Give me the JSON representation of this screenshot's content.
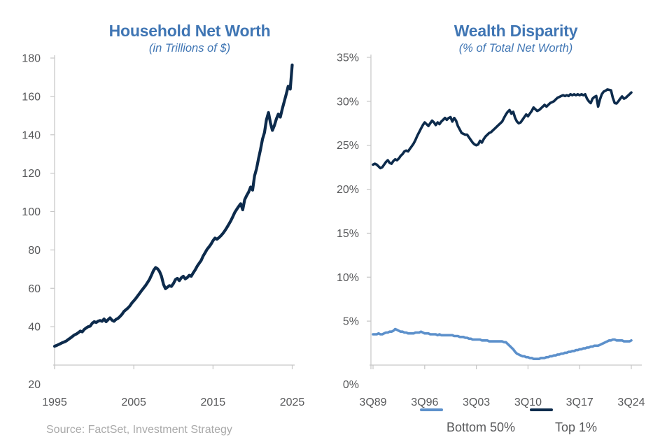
{
  "page": {
    "background": "#FFFFFF"
  },
  "source_note": "Source: FactSet, Investment Strategy",
  "colors": {
    "title_blue": "#4076B4",
    "navy": "#0D2B4C",
    "light_blue": "#5C90CB",
    "axis_gray": "#C6C6C6",
    "label_gray": "#58595B",
    "source_gray": "#A9A9A9"
  },
  "chart_data": [
    {
      "type": "line",
      "title": "Household Net Worth",
      "subtitle": "(in Trillions of $)",
      "xlabel": "",
      "ylabel": "",
      "grid": false,
      "legend_position": "none",
      "ylim": [
        20,
        180
      ],
      "ytick_labels": [
        "180",
        "160",
        "140",
        "120",
        "100",
        "80",
        "60",
        "40",
        "20"
      ],
      "xtick_labels": [
        "1995",
        "2005",
        "2015",
        "2025"
      ],
      "xtick_years": [
        1995,
        2005,
        2015,
        2025
      ],
      "x_start": 1995.0,
      "x_step": 0.25,
      "x_end": 2025.0,
      "x_unit": "quarterly, 1Q95 to 1Q25",
      "series": [
        {
          "name": "Household Net Worth",
          "color": "#0D2B4C",
          "values": [
            29.8,
            30.2,
            30.7,
            31.2,
            31.7,
            32.1,
            32.6,
            33.4,
            34.1,
            34.9,
            35.7,
            36.2,
            36.9,
            37.7,
            37.3,
            38.6,
            39.4,
            40.0,
            40.3,
            41.8,
            42.6,
            42.2,
            42.9,
            43.2,
            42.8,
            44.0,
            42.6,
            43.6,
            44.6,
            43.4,
            42.8,
            43.8,
            44.3,
            45.3,
            46.4,
            47.9,
            48.8,
            49.7,
            50.8,
            52.3,
            53.5,
            54.7,
            56.1,
            57.5,
            58.9,
            60.2,
            61.5,
            63.1,
            64.8,
            67.0,
            69.4,
            70.8,
            70.2,
            68.8,
            66.2,
            62.1,
            59.8,
            60.6,
            61.4,
            61.0,
            62.5,
            64.5,
            65.2,
            64.0,
            65.5,
            66.3,
            64.9,
            65.6,
            66.8,
            66.3,
            68.0,
            69.6,
            71.5,
            73.0,
            74.5,
            76.8,
            78.5,
            80.3,
            81.6,
            83.0,
            84.8,
            86.2,
            85.6,
            86.4,
            87.4,
            88.6,
            90.0,
            91.6,
            93.4,
            95.2,
            97.3,
            99.6,
            101.2,
            102.7,
            104.1,
            100.9,
            106.2,
            108.3,
            110.2,
            112.8,
            111.2,
            118.6,
            122.4,
            127.6,
            132.3,
            137.8,
            141.2,
            147.8,
            151.6,
            146.2,
            142.3,
            144.8,
            148.3,
            150.8,
            149.2,
            153.6,
            157.4,
            161.2,
            165.3,
            163.8,
            176.4
          ]
        }
      ]
    },
    {
      "type": "line",
      "title": "Wealth Disparity",
      "subtitle": "(% of Total Net Worth)",
      "xlabel": "",
      "ylabel": "",
      "grid": false,
      "legend_position": "bottom",
      "ylim": [
        0,
        35
      ],
      "ytick_labels": [
        "35%",
        "30%",
        "25%",
        "20%",
        "15%",
        "10%",
        "5%",
        "0%"
      ],
      "xtick_labels": [
        "3Q89",
        "3Q96",
        "3Q03",
        "3Q10",
        "3Q17",
        "3Q24"
      ],
      "xtick_years": [
        1989.75,
        1996.75,
        2003.75,
        2010.75,
        2017.75,
        2024.75
      ],
      "x_start": 1989.75,
      "x_step": 0.25,
      "x_end": 2024.75,
      "x_unit": "quarterly, 3Q89 to 3Q24",
      "series": [
        {
          "name": "Bottom 50%",
          "color": "#5C90CB",
          "values": [
            3.5,
            3.5,
            3.5,
            3.6,
            3.5,
            3.5,
            3.6,
            3.7,
            3.7,
            3.8,
            3.8,
            3.9,
            4.1,
            4.0,
            3.9,
            3.8,
            3.8,
            3.7,
            3.7,
            3.6,
            3.6,
            3.6,
            3.6,
            3.7,
            3.7,
            3.7,
            3.8,
            3.7,
            3.6,
            3.6,
            3.6,
            3.5,
            3.5,
            3.5,
            3.5,
            3.4,
            3.5,
            3.4,
            3.4,
            3.4,
            3.4,
            3.4,
            3.4,
            3.4,
            3.3,
            3.3,
            3.3,
            3.2,
            3.2,
            3.2,
            3.1,
            3.1,
            3.0,
            3.0,
            2.9,
            2.9,
            2.9,
            2.9,
            2.9,
            2.8,
            2.8,
            2.8,
            2.8,
            2.7,
            2.7,
            2.7,
            2.7,
            2.7,
            2.7,
            2.7,
            2.7,
            2.6,
            2.6,
            2.4,
            2.2,
            2.0,
            1.8,
            1.5,
            1.3,
            1.2,
            1.1,
            1.0,
            1.0,
            0.9,
            0.9,
            0.8,
            0.8,
            0.7,
            0.7,
            0.7,
            0.7,
            0.8,
            0.8,
            0.8,
            0.9,
            0.9,
            1.0,
            1.0,
            1.1,
            1.1,
            1.2,
            1.2,
            1.3,
            1.3,
            1.4,
            1.4,
            1.5,
            1.5,
            1.6,
            1.6,
            1.7,
            1.7,
            1.8,
            1.8,
            1.9,
            1.9,
            2.0,
            2.0,
            2.1,
            2.1,
            2.2,
            2.2,
            2.2,
            2.3,
            2.4,
            2.5,
            2.6,
            2.7,
            2.8,
            2.8,
            2.9,
            2.9,
            2.8,
            2.8,
            2.8,
            2.8,
            2.7,
            2.7,
            2.7,
            2.7,
            2.8
          ]
        },
        {
          "name": "Top 1%",
          "color": "#0D2B4C",
          "values": [
            22.8,
            22.9,
            22.8,
            22.6,
            22.4,
            22.5,
            22.8,
            23.1,
            23.3,
            23.0,
            22.9,
            23.2,
            23.4,
            23.3,
            23.5,
            23.8,
            24.0,
            24.3,
            24.4,
            24.3,
            24.6,
            24.9,
            25.2,
            25.6,
            26.1,
            26.5,
            26.9,
            27.3,
            27.6,
            27.4,
            27.2,
            27.5,
            27.8,
            27.6,
            27.3,
            27.6,
            27.4,
            27.7,
            27.9,
            28.1,
            27.9,
            28.1,
            28.2,
            27.7,
            28.1,
            27.8,
            27.2,
            26.8,
            26.4,
            26.3,
            26.2,
            26.2,
            25.9,
            25.6,
            25.3,
            25.1,
            25.0,
            25.1,
            25.5,
            25.3,
            25.7,
            26.0,
            26.2,
            26.4,
            26.5,
            26.7,
            26.9,
            27.1,
            27.3,
            27.5,
            27.7,
            28.1,
            28.5,
            28.8,
            29.0,
            28.6,
            28.8,
            28.1,
            27.7,
            27.5,
            27.6,
            27.9,
            28.2,
            28.5,
            28.3,
            28.6,
            28.9,
            29.3,
            29.1,
            28.9,
            29.0,
            29.2,
            29.4,
            29.6,
            29.4,
            29.6,
            29.8,
            29.9,
            30.0,
            30.2,
            30.4,
            30.5,
            30.6,
            30.7,
            30.6,
            30.7,
            30.6,
            30.8,
            30.7,
            30.8,
            30.7,
            30.8,
            30.7,
            30.8,
            30.7,
            30.8,
            30.3,
            30.0,
            29.8,
            30.3,
            30.5,
            30.6,
            29.4,
            30.2,
            30.8,
            31.1,
            31.2,
            31.35,
            31.3,
            31.25,
            30.4,
            29.8,
            29.75,
            30.0,
            30.3,
            30.55,
            30.3,
            30.4,
            30.6,
            30.8,
            31.0
          ]
        }
      ],
      "legend": [
        {
          "label": "Bottom 50%",
          "color": "#5C90CB"
        },
        {
          "label": "Top 1%",
          "color": "#0D2B4C"
        }
      ]
    }
  ]
}
